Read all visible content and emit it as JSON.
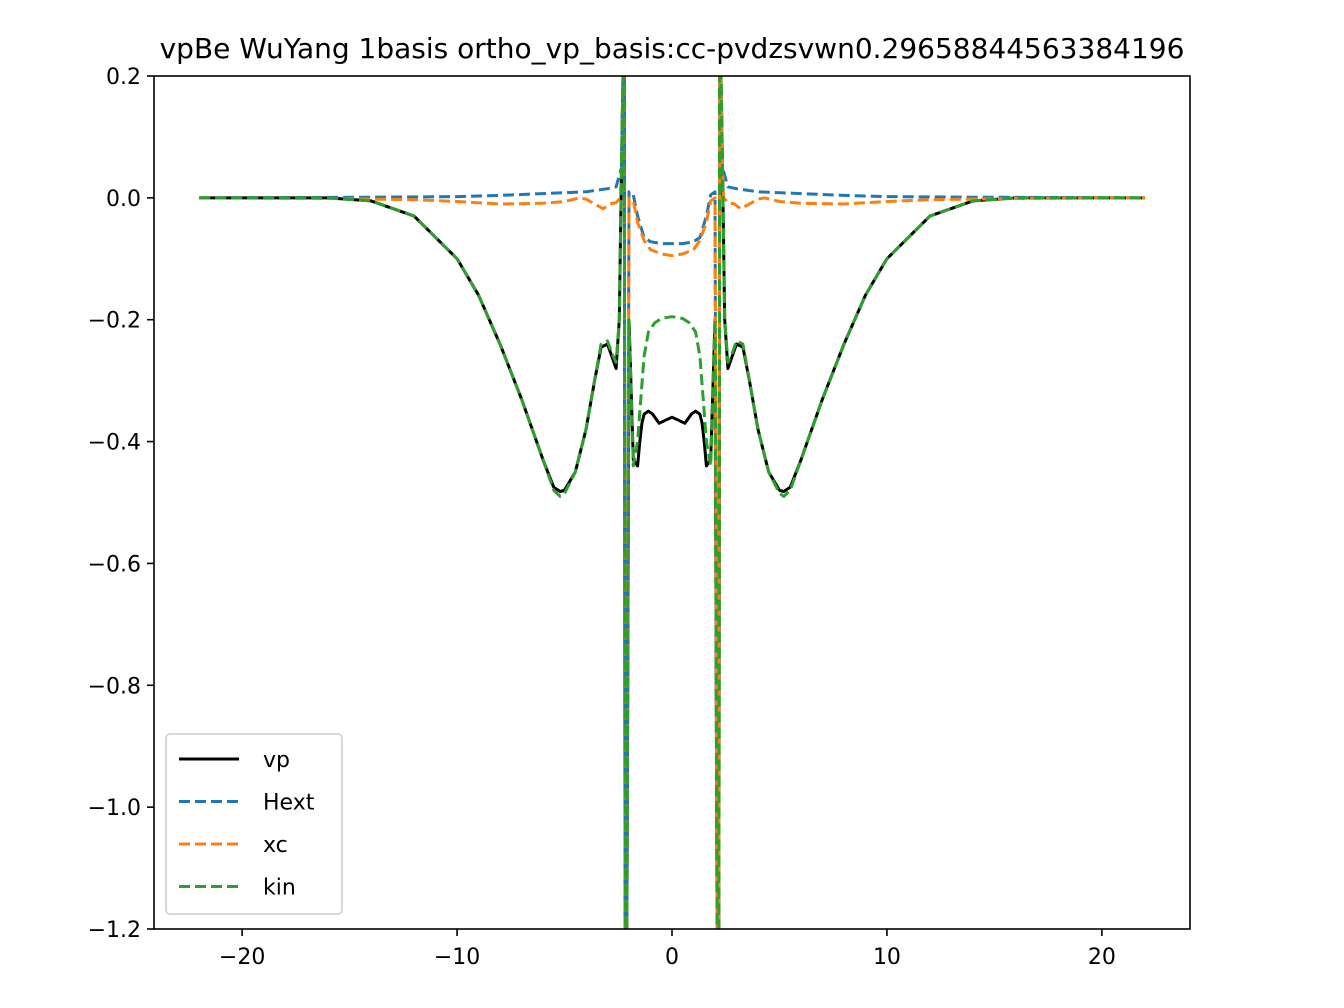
{
  "chart_data": {
    "type": "line",
    "title": "vpBe WuYang 1basis ortho_vp_basis:cc-pvdzsvwn0.29658844563384196",
    "xlabel": "",
    "ylabel": "",
    "xlim": [
      -24.1,
      24.1
    ],
    "ylim": [
      -1.2,
      0.2
    ],
    "xticks": [
      -20,
      -10,
      0,
      10,
      20
    ],
    "xtick_labels": [
      "−20",
      "−10",
      "0",
      "10",
      "20"
    ],
    "yticks": [
      0.2,
      0.0,
      -0.2,
      -0.4,
      -0.6,
      -0.8,
      -1.0,
      -1.2
    ],
    "ytick_labels": [
      "0.2",
      "0.0",
      "−0.2",
      "−0.4",
      "−0.6",
      "−0.8",
      "−1.0",
      "−1.2"
    ],
    "grid": false,
    "legend_position": "lower-left",
    "series": [
      {
        "name": "vp",
        "color": "#000000",
        "style": "solid",
        "x": [
          -22,
          -16,
          -14,
          -12,
          -10,
          -9,
          -8,
          -7,
          -6,
          -5.5,
          -5.2,
          -5,
          -4.5,
          -4,
          -3.6,
          -3.3,
          -3,
          -2.8,
          -2.6,
          -2.45,
          -2.35,
          -2.28,
          -2.22,
          -2.18,
          -2.1,
          -2.0,
          -1.8,
          -1.6,
          -1.5,
          -1.4,
          -1.3,
          -1.1,
          -0.9,
          -0.6,
          -0.3,
          0,
          0.3,
          0.6,
          0.9,
          1.1,
          1.3,
          1.4,
          1.5,
          1.6,
          1.8,
          2.0,
          2.1,
          2.18,
          2.22,
          2.28,
          2.35,
          2.45,
          2.6,
          2.8,
          3,
          3.3,
          3.6,
          4,
          4.5,
          5,
          5.2,
          5.5,
          6,
          7,
          8,
          9,
          10,
          12,
          14,
          16,
          22
        ],
        "y": [
          0.0,
          0.0,
          -0.005,
          -0.03,
          -0.1,
          -0.16,
          -0.24,
          -0.33,
          -0.43,
          -0.475,
          -0.482,
          -0.48,
          -0.45,
          -0.38,
          -0.3,
          -0.245,
          -0.24,
          -0.26,
          -0.28,
          -0.2,
          0.05,
          0.2,
          0.2,
          -1.2,
          -1.2,
          -0.2,
          -0.43,
          -0.44,
          -0.4,
          -0.37,
          -0.355,
          -0.35,
          -0.355,
          -0.37,
          -0.365,
          -0.36,
          -0.365,
          -0.37,
          -0.355,
          -0.35,
          -0.355,
          -0.37,
          -0.4,
          -0.44,
          -0.43,
          -0.2,
          -1.2,
          -1.2,
          0.2,
          0.2,
          0.05,
          -0.2,
          -0.28,
          -0.26,
          -0.24,
          -0.245,
          -0.3,
          -0.38,
          -0.45,
          -0.48,
          -0.482,
          -0.475,
          -0.43,
          -0.33,
          -0.24,
          -0.16,
          -0.1,
          -0.03,
          -0.005,
          0.0,
          0.0
        ]
      },
      {
        "name": "Hext",
        "color": "#1f77b4",
        "style": "dashed",
        "x": [
          -22,
          -14,
          -10,
          -8,
          -6,
          -4,
          -3,
          -2.6,
          -2.35,
          -2.28,
          -2.22,
          -2.18,
          -2.1,
          -2.0,
          -1.8,
          -1.6,
          -1.3,
          -1.0,
          -0.5,
          0,
          0.5,
          1.0,
          1.3,
          1.6,
          1.8,
          2.0,
          2.1,
          2.18,
          2.22,
          2.28,
          2.35,
          2.6,
          3,
          4,
          6,
          8,
          10,
          14,
          22
        ],
        "y": [
          0.0,
          0.001,
          0.002,
          0.004,
          0.007,
          0.01,
          0.015,
          0.018,
          0.05,
          0.2,
          0.2,
          -1.2,
          -1.2,
          0.01,
          0.005,
          -0.03,
          -0.065,
          -0.072,
          -0.075,
          -0.075,
          -0.075,
          -0.072,
          -0.065,
          -0.03,
          0.005,
          0.01,
          -1.2,
          -1.2,
          0.2,
          0.2,
          0.05,
          0.018,
          0.015,
          0.01,
          0.007,
          0.004,
          0.002,
          0.001,
          0.0
        ]
      },
      {
        "name": "xc",
        "color": "#ff7f0e",
        "style": "dashed",
        "x": [
          -22,
          -16,
          -12,
          -10,
          -8,
          -6,
          -5,
          -4.3,
          -4,
          -3.6,
          -3.2,
          -2.9,
          -2.6,
          -2.4,
          -2.35,
          -2.28,
          -2.22,
          -2.18,
          -2.1,
          -2.0,
          -1.8,
          -1.6,
          -1.3,
          -1.0,
          -0.5,
          0,
          0.5,
          1.0,
          1.3,
          1.6,
          1.8,
          2.0,
          2.1,
          2.18,
          2.22,
          2.28,
          2.35,
          2.4,
          2.6,
          2.9,
          3.2,
          3.6,
          4,
          4.3,
          5,
          6,
          8,
          10,
          12,
          16,
          22
        ],
        "y": [
          0.0,
          -0.001,
          -0.003,
          -0.006,
          -0.01,
          -0.009,
          -0.006,
          0.0,
          -0.002,
          -0.01,
          -0.018,
          -0.01,
          -0.008,
          0.0,
          0.05,
          0.2,
          0.2,
          -1.2,
          -1.2,
          0.0,
          -0.005,
          -0.04,
          -0.07,
          -0.085,
          -0.092,
          -0.095,
          -0.092,
          -0.085,
          -0.07,
          -0.04,
          -0.005,
          0.0,
          -1.2,
          -1.2,
          0.2,
          0.2,
          0.05,
          0.0,
          -0.008,
          -0.01,
          -0.018,
          -0.01,
          -0.002,
          0.0,
          -0.006,
          -0.009,
          -0.01,
          -0.006,
          -0.003,
          -0.001,
          0.0
        ]
      },
      {
        "name": "kin",
        "color": "#2ca02c",
        "style": "dashed",
        "x": [
          -22,
          -16,
          -14,
          -12,
          -10,
          -9,
          -8,
          -7,
          -6,
          -5.5,
          -5.2,
          -5,
          -4.5,
          -4,
          -3.6,
          -3.3,
          -3,
          -2.8,
          -2.6,
          -2.45,
          -2.35,
          -2.28,
          -2.22,
          -2.18,
          -2.1,
          -2.0,
          -1.8,
          -1.6,
          -1.45,
          -1.3,
          -1.1,
          -0.8,
          -0.5,
          -0.2,
          0,
          0.2,
          0.5,
          0.8,
          1.1,
          1.3,
          1.45,
          1.6,
          1.8,
          2.0,
          2.1,
          2.18,
          2.22,
          2.28,
          2.35,
          2.45,
          2.6,
          2.8,
          3,
          3.3,
          3.6,
          4,
          4.5,
          5,
          5.2,
          5.5,
          6,
          7,
          8,
          9,
          10,
          12,
          14,
          16,
          22
        ],
        "y": [
          0.0,
          0.0,
          -0.005,
          -0.03,
          -0.1,
          -0.16,
          -0.24,
          -0.33,
          -0.43,
          -0.48,
          -0.49,
          -0.485,
          -0.45,
          -0.38,
          -0.3,
          -0.24,
          -0.235,
          -0.255,
          -0.27,
          -0.2,
          0.05,
          0.2,
          0.2,
          -1.2,
          -1.2,
          -0.2,
          -0.44,
          -0.4,
          -0.33,
          -0.26,
          -0.22,
          -0.205,
          -0.198,
          -0.196,
          -0.195,
          -0.196,
          -0.198,
          -0.205,
          -0.22,
          -0.26,
          -0.33,
          -0.4,
          -0.44,
          -0.2,
          -1.2,
          -1.2,
          0.2,
          0.2,
          0.05,
          -0.2,
          -0.27,
          -0.255,
          -0.235,
          -0.24,
          -0.3,
          -0.38,
          -0.45,
          -0.485,
          -0.49,
          -0.48,
          -0.43,
          -0.33,
          -0.24,
          -0.16,
          -0.1,
          -0.03,
          -0.005,
          0.0,
          0.0
        ]
      }
    ],
    "annotations": []
  }
}
